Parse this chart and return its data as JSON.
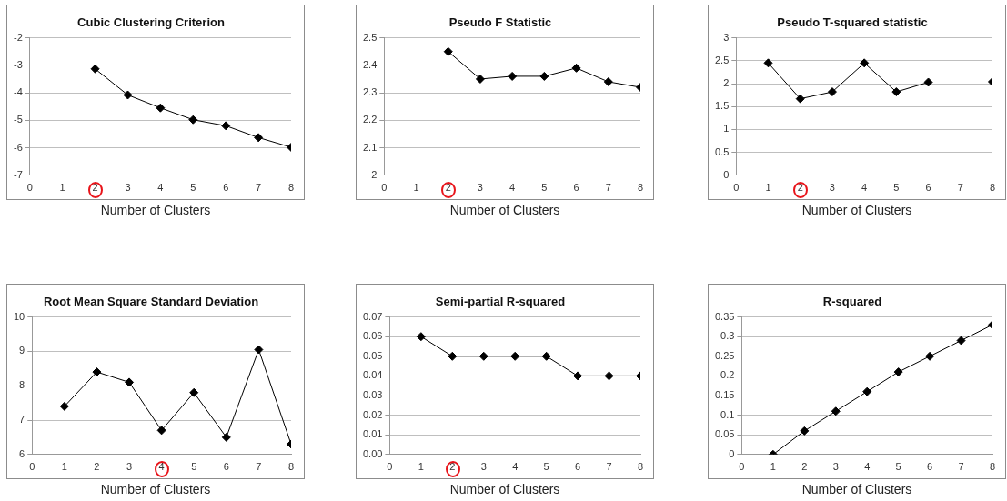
{
  "chart_data": [
    {
      "type": "line",
      "title": "Cubic Clustering Criterion",
      "xlabel": "Number of Clusters",
      "x": [
        2,
        3,
        4,
        5,
        6,
        7,
        8
      ],
      "values": [
        -3.13,
        -4.08,
        -4.55,
        -4.98,
        -5.2,
        -5.63,
        -5.98
      ],
      "color": "#000000",
      "xlim": [
        0,
        8
      ],
      "xticks": [
        0,
        1,
        2,
        3,
        4,
        5,
        6,
        7,
        8
      ],
      "ylim": [
        -7,
        -2
      ],
      "yticks": [
        -7,
        -6,
        -5,
        -4,
        -3,
        -2
      ],
      "grid": "y",
      "marker": "diamond",
      "legend": false
    },
    {
      "type": "line",
      "title": "Pseudo F Statistic",
      "xlabel": "Number of Clusters",
      "x": [
        2,
        3,
        4,
        5,
        6,
        7,
        8
      ],
      "values": [
        2.45,
        2.35,
        2.36,
        2.36,
        2.39,
        2.34,
        2.32
      ],
      "color": "#000000",
      "xlim": [
        0,
        8
      ],
      "xticks": [
        0,
        1,
        2,
        3,
        4,
        5,
        6,
        7,
        8
      ],
      "ylim": [
        2,
        2.5
      ],
      "yticks": [
        2,
        2.1,
        2.2,
        2.3,
        2.4,
        2.5
      ],
      "grid": "y",
      "marker": "diamond",
      "legend": false
    },
    {
      "type": "line",
      "title": "Pseudo T-squared statistic",
      "xlabel": "Number of Clusters",
      "x": [
        1,
        2,
        3,
        4,
        5,
        6,
        7,
        8
      ],
      "values": [
        2.45,
        1.67,
        1.82,
        2.45,
        1.82,
        2.03,
        null,
        2.04
      ],
      "color": "#000000",
      "xlim": [
        0,
        8
      ],
      "xticks": [
        0,
        1,
        2,
        3,
        4,
        5,
        6,
        7,
        8
      ],
      "ylim": [
        0,
        3
      ],
      "yticks": [
        0,
        0.5,
        1,
        1.5,
        2,
        2.5,
        3
      ],
      "grid": "y",
      "marker": "diamond",
      "legend": false
    },
    {
      "type": "line",
      "title": "Root Mean Square Standard Deviation",
      "xlabel": "Number of Clusters",
      "x": [
        1,
        2,
        3,
        4,
        5,
        6,
        7,
        8
      ],
      "values": [
        7.4,
        8.4,
        8.1,
        6.7,
        7.8,
        6.5,
        9.05,
        6.3
      ],
      "color": "#000000",
      "xlim": [
        0,
        8
      ],
      "xticks": [
        0,
        1,
        2,
        3,
        4,
        5,
        6,
        7,
        8
      ],
      "ylim": [
        6,
        10
      ],
      "yticks": [
        6,
        7,
        8,
        9,
        10
      ],
      "grid": "y",
      "marker": "diamond",
      "legend": false
    },
    {
      "type": "line",
      "title": "Semi-partial R-squared",
      "xlabel": "Number of Clusters",
      "x": [
        1,
        2,
        3,
        4,
        5,
        6,
        7,
        8
      ],
      "values": [
        0.06,
        0.05,
        0.05,
        0.05,
        0.05,
        0.04,
        0.04,
        0.04
      ],
      "color": "#000000",
      "xlim": [
        0,
        8
      ],
      "xticks": [
        0,
        1,
        2,
        3,
        4,
        5,
        6,
        7,
        8
      ],
      "ylim": [
        0,
        0.07
      ],
      "yticks": [
        {
          "value": 0,
          "label": "0.00"
        },
        {
          "value": 0.01,
          "label": "0.01"
        },
        {
          "value": 0.02,
          "label": "0.02"
        },
        {
          "value": 0.03,
          "label": "0.03"
        },
        {
          "value": 0.04,
          "label": "0.04"
        },
        {
          "value": 0.05,
          "label": "0.05"
        },
        {
          "value": 0.06,
          "label": "0.06"
        },
        {
          "value": 0.07,
          "label": "0.07"
        }
      ],
      "grid": "y",
      "marker": "diamond",
      "legend": false
    },
    {
      "type": "line",
      "title": "R-squared",
      "xlabel": "Number of Clusters",
      "x": [
        1,
        2,
        3,
        4,
        5,
        6,
        7,
        8
      ],
      "values": [
        0,
        0.06,
        0.11,
        0.16,
        0.21,
        0.25,
        0.29,
        0.33
      ],
      "color": "#000000",
      "xlim": [
        0,
        8
      ],
      "xticks": [
        0,
        1,
        2,
        3,
        4,
        5,
        6,
        7,
        8
      ],
      "ylim": [
        0,
        0.35
      ],
      "yticks": [
        0,
        0.05,
        0.1,
        0.15,
        0.2,
        0.25,
        0.3,
        0.35
      ],
      "grid": "y",
      "marker": "diamond",
      "legend": false
    }
  ]
}
